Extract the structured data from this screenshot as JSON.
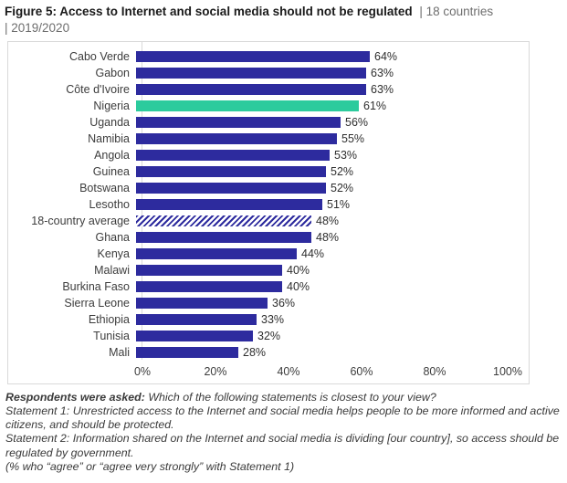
{
  "title": {
    "main": "Figure 5: Access to Internet and social media should not be regulated",
    "meta_line1": "| 18 countries",
    "meta_line2": "| 2019/2020"
  },
  "colors": {
    "bar_navy": "#2d2b9e",
    "bar_highlight_teal": "#2ccb9d",
    "hatch_background": "#ffffff",
    "border_gray": "#d9d9d9"
  },
  "chart_data": {
    "type": "bar",
    "orientation": "horizontal",
    "title": "Access to Internet and social media should not be regulated",
    "unit": "%",
    "xlim": [
      0,
      100
    ],
    "grid": false,
    "legend": "none",
    "rows": [
      {
        "label": "Cabo Verde",
        "value": 64,
        "style": "normal"
      },
      {
        "label": "Gabon",
        "value": 63,
        "style": "normal"
      },
      {
        "label": "Côte d'Ivoire",
        "value": 63,
        "style": "normal"
      },
      {
        "label": "Nigeria",
        "value": 61,
        "style": "highlight"
      },
      {
        "label": "Uganda",
        "value": 56,
        "style": "normal"
      },
      {
        "label": "Namibia",
        "value": 55,
        "style": "normal"
      },
      {
        "label": "Angola",
        "value": 53,
        "style": "normal"
      },
      {
        "label": "Guinea",
        "value": 52,
        "style": "normal"
      },
      {
        "label": "Botswana",
        "value": 52,
        "style": "normal"
      },
      {
        "label": "Lesotho",
        "value": 51,
        "style": "normal"
      },
      {
        "label": "18-country average",
        "value": 48,
        "style": "hatched"
      },
      {
        "label": "Ghana",
        "value": 48,
        "style": "normal"
      },
      {
        "label": "Kenya",
        "value": 44,
        "style": "normal"
      },
      {
        "label": "Malawi",
        "value": 40,
        "style": "normal"
      },
      {
        "label": "Burkina Faso",
        "value": 40,
        "style": "normal"
      },
      {
        "label": "Sierra Leone",
        "value": 36,
        "style": "normal"
      },
      {
        "label": "Ethiopia",
        "value": 33,
        "style": "normal"
      },
      {
        "label": "Tunisia",
        "value": 32,
        "style": "normal"
      },
      {
        "label": "Mali",
        "value": 28,
        "style": "normal"
      }
    ],
    "x_ticks": [
      {
        "label": "0%",
        "value": 0
      },
      {
        "label": "20%",
        "value": 20
      },
      {
        "label": "40%",
        "value": 40
      },
      {
        "label": "60%",
        "value": 60
      },
      {
        "label": "80%",
        "value": 80
      },
      {
        "label": "100%",
        "value": 100
      }
    ]
  },
  "footnote": {
    "lead_bold": "Respondents were asked:",
    "lead_rest": "Which of the following statements is closest to your view?",
    "statement1": "Statement 1: Unrestricted access to the Internet and social media helps people to be more informed and active citizens, and should be protected.",
    "statement2": "Statement 2: Information shared on the Internet and social media is dividing [our country], so access should be regulated by government.",
    "note": "(% who “agree” or “agree very strongly” with Statement 1)"
  }
}
